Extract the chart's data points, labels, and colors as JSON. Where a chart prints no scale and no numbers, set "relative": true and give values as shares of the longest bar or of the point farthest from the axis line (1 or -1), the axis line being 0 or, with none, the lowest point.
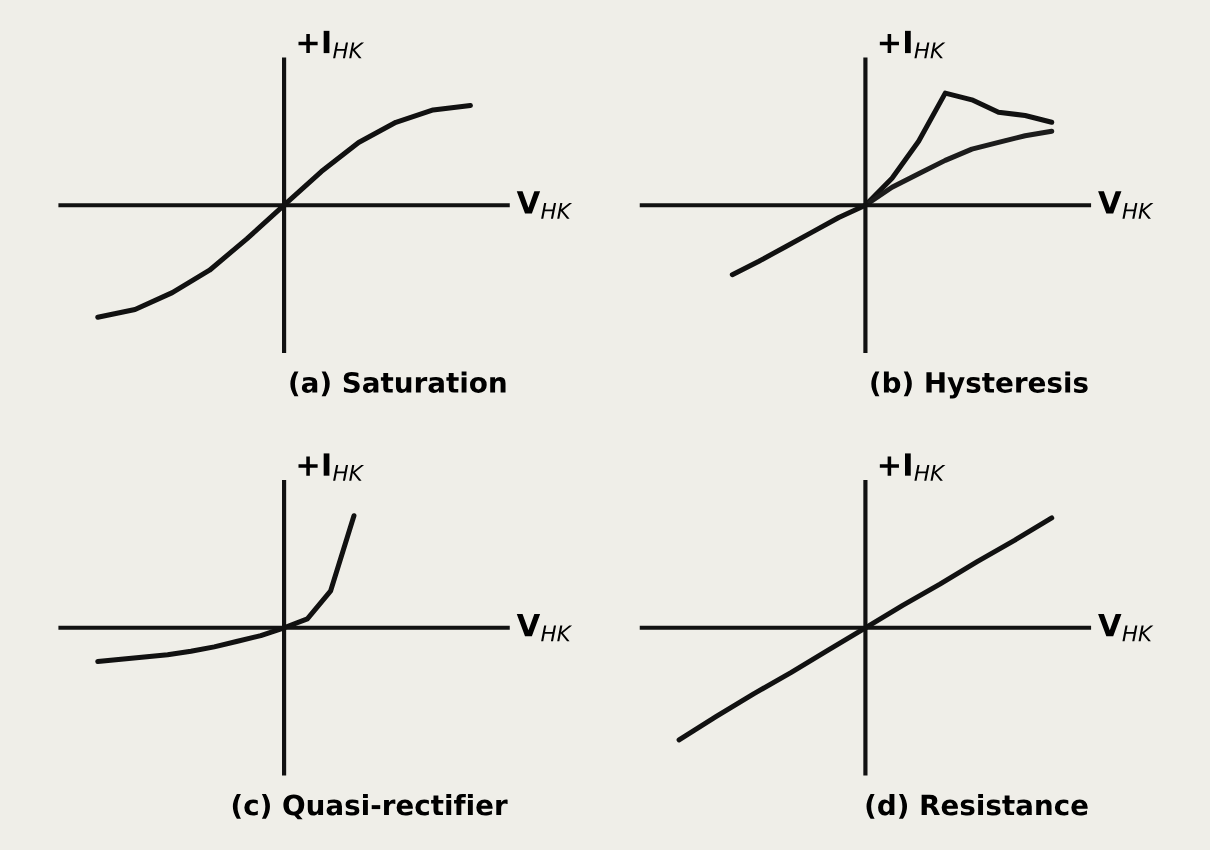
{
  "chart_data": [
    {
      "type": "line",
      "relative": true,
      "title": "(a) Saturation",
      "xlabel": "V$_{HK}$",
      "ylabel": "+I$_{HK}$",
      "categories": [
        null,
        null,
        null,
        null,
        null,
        null,
        null,
        null,
        null,
        null,
        null
      ],
      "series": [
        {
          "color": "#111111",
          "values": [
            -1,
            -0.93,
            -0.78,
            -0.58,
            -0.3,
            0,
            0.3,
            0.56,
            0.74,
            0.85,
            0.89
          ]
        }
      ]
    },
    {
      "type": "line",
      "relative": true,
      "title": "(b) Hysteresis",
      "xlabel": "V$_{HK}$",
      "ylabel": "+I$_{HK}$",
      "categories": [
        null,
        null,
        null,
        null,
        null,
        null,
        null,
        null,
        null,
        null,
        null,
        null,
        null
      ],
      "series": [
        {
          "color": "#111111",
          "values": [
            -0.62,
            -0.5,
            -0.37,
            -0.24,
            -0.11,
            0,
            0.24,
            0.57,
            1,
            0.94,
            0.83,
            0.8,
            0.74
          ]
        },
        {
          "color": "#1c1c1c",
          "values": [
            null,
            null,
            null,
            null,
            null,
            0,
            0.16,
            0.28,
            0.4,
            0.5,
            0.56,
            0.62,
            0.66
          ]
        }
      ]
    },
    {
      "type": "line",
      "relative": true,
      "title": "(c) Quasi-rectifier",
      "xlabel": "V$_{HK}$",
      "ylabel": "+I$_{HK}$",
      "categories": [
        null,
        null,
        null,
        null,
        null,
        null,
        null,
        null,
        null,
        null,
        null,
        null
      ],
      "series": [
        {
          "color": "#111111",
          "values": [
            -0.3,
            -0.28,
            -0.26,
            -0.24,
            -0.21,
            -0.17,
            -0.12,
            -0.07,
            0,
            0.08,
            0.33,
            1
          ]
        }
      ]
    },
    {
      "type": "line",
      "relative": true,
      "title": "(d) Resistance",
      "xlabel": "V$_{HK}$",
      "ylabel": "+I$_{HK}$",
      "categories": [
        null,
        null,
        null,
        null,
        null,
        null,
        null,
        null,
        null,
        null,
        null
      ],
      "series": [
        {
          "color": "#111111",
          "values": [
            -1,
            -0.79,
            -0.59,
            -0.4,
            -0.2,
            0,
            0.2,
            0.39,
            0.59,
            0.78,
            0.98
          ]
        }
      ]
    }
  ]
}
